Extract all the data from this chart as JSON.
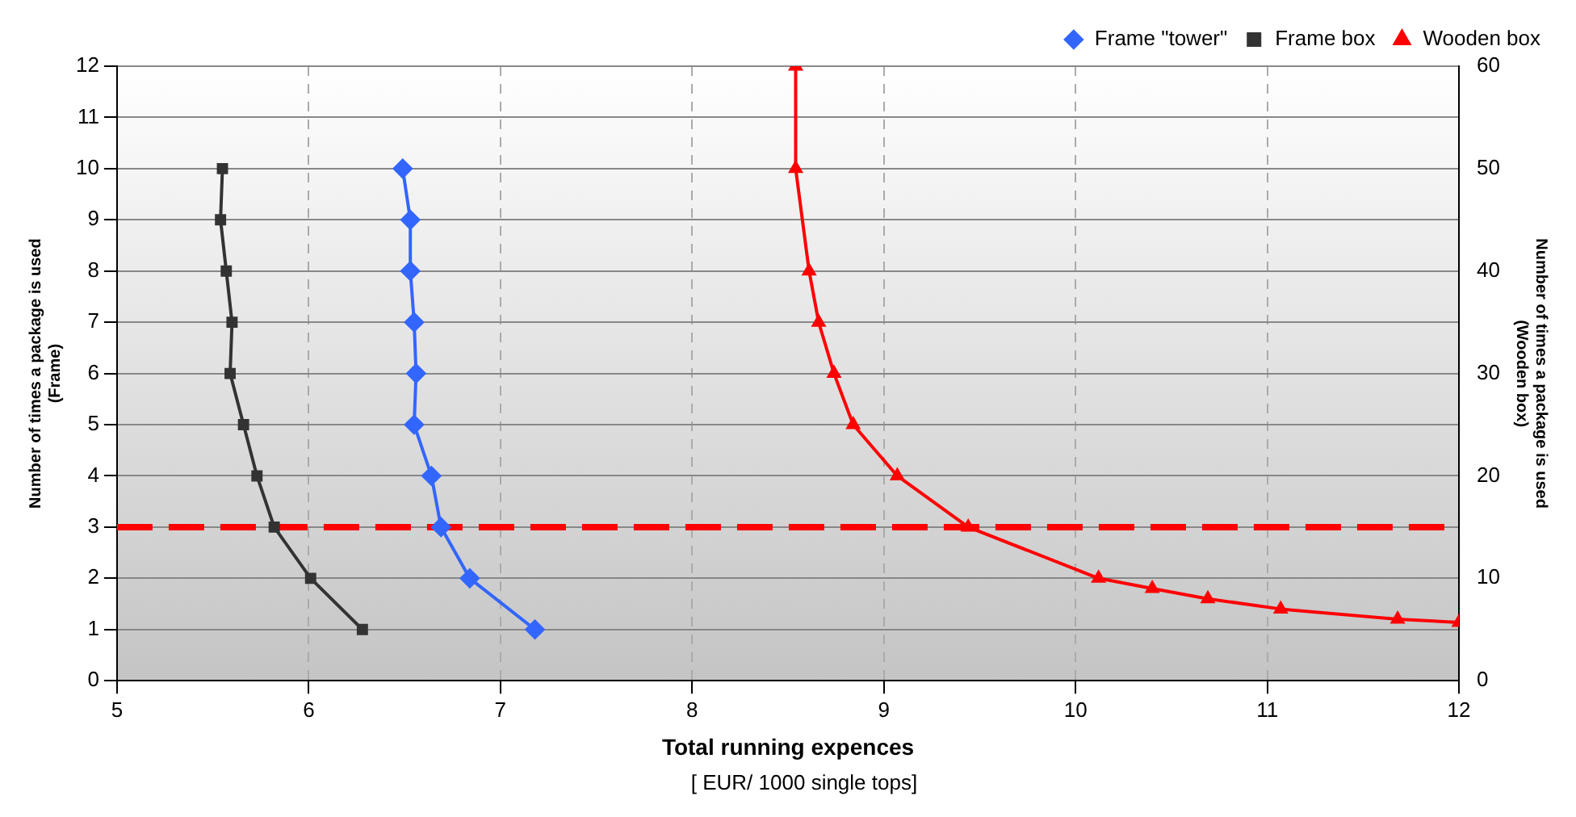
{
  "chart_data": {
    "type": "line",
    "xlabel": "Total running expences",
    "ylabel": "Number of times a package is used\n(Frame)",
    "y2label": "Number of times a package is used\n(Wooden box)",
    "annotations": [
      "[ EUR/ 1000 single tops]"
    ],
    "xlim": [
      5,
      12
    ],
    "xticks": [
      5,
      6,
      7,
      8,
      9,
      10,
      11,
      12
    ],
    "ylim": [
      0,
      12
    ],
    "yticks": [
      0,
      1,
      2,
      3,
      4,
      5,
      6,
      7,
      8,
      9,
      10,
      11,
      12
    ],
    "y2lim": [
      0,
      60
    ],
    "y2ticks": [
      0,
      10,
      20,
      30,
      40,
      50,
      60
    ],
    "grid": true,
    "legend": "top right",
    "ref_lines": [
      {
        "axis": "y",
        "value": 3,
        "color": "#ff0000",
        "line_style": "dashed"
      }
    ],
    "series": [
      {
        "name": "Frame \"tower\"",
        "color": "#3366ff",
        "marker": "diamond",
        "x": [
          7.18,
          6.84,
          6.69,
          6.64,
          6.55,
          6.56,
          6.55,
          6.53,
          6.53,
          6.49
        ],
        "values": [
          1,
          2,
          3,
          4,
          5,
          6,
          7,
          8,
          9,
          10
        ]
      },
      {
        "name": "Frame box",
        "color": "#333333",
        "marker": "square",
        "x": [
          6.28,
          6.01,
          5.82,
          5.73,
          5.66,
          5.59,
          5.6,
          5.57,
          5.54,
          5.55
        ],
        "values": [
          1,
          2,
          3,
          4,
          5,
          6,
          7,
          8,
          9,
          10
        ]
      },
      {
        "name": "Wooden box",
        "color": "#ff0000",
        "marker": "triangle",
        "axis": "y2",
        "x": [
          8.54,
          8.54,
          8.61,
          8.66,
          8.74,
          8.84,
          9.07,
          9.44,
          10.12,
          10.4,
          10.69,
          11.07,
          11.68,
          12
        ],
        "values": [
          60,
          50,
          40,
          35,
          30,
          25,
          20,
          15,
          10,
          9,
          8,
          7,
          6,
          5.7
        ]
      }
    ]
  }
}
